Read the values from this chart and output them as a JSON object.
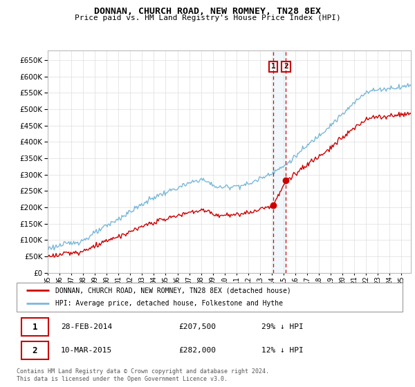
{
  "title": "DONNAN, CHURCH ROAD, NEW ROMNEY, TN28 8EX",
  "subtitle": "Price paid vs. HM Land Registry's House Price Index (HPI)",
  "legend_line1": "DONNAN, CHURCH ROAD, NEW ROMNEY, TN28 8EX (detached house)",
  "legend_line2": "HPI: Average price, detached house, Folkestone and Hythe",
  "transaction1_label": "1",
  "transaction1_date": "28-FEB-2014",
  "transaction1_price": "£207,500",
  "transaction1_hpi": "29% ↓ HPI",
  "transaction2_label": "2",
  "transaction2_date": "10-MAR-2015",
  "transaction2_price": "£282,000",
  "transaction2_hpi": "12% ↓ HPI",
  "footer": "Contains HM Land Registry data © Crown copyright and database right 2024.\nThis data is licensed under the Open Government Licence v3.0.",
  "hpi_color": "#7ab8d9",
  "price_color": "#cc0000",
  "marker_color": "#cc0000",
  "dashed_line_color": "#cc0000",
  "highlight_box_color": "#d8eaf5",
  "ylim_min": 0,
  "ylim_max": 680000,
  "yticks": [
    0,
    50000,
    100000,
    150000,
    200000,
    250000,
    300000,
    350000,
    400000,
    450000,
    500000,
    550000,
    600000,
    650000
  ],
  "x_start_year": 1995,
  "x_end_year": 2025,
  "sale1_year": 2014,
  "sale1_month": 2,
  "sale1_price": 207500,
  "sale2_year": 2015,
  "sale2_month": 3,
  "sale2_price": 282000
}
